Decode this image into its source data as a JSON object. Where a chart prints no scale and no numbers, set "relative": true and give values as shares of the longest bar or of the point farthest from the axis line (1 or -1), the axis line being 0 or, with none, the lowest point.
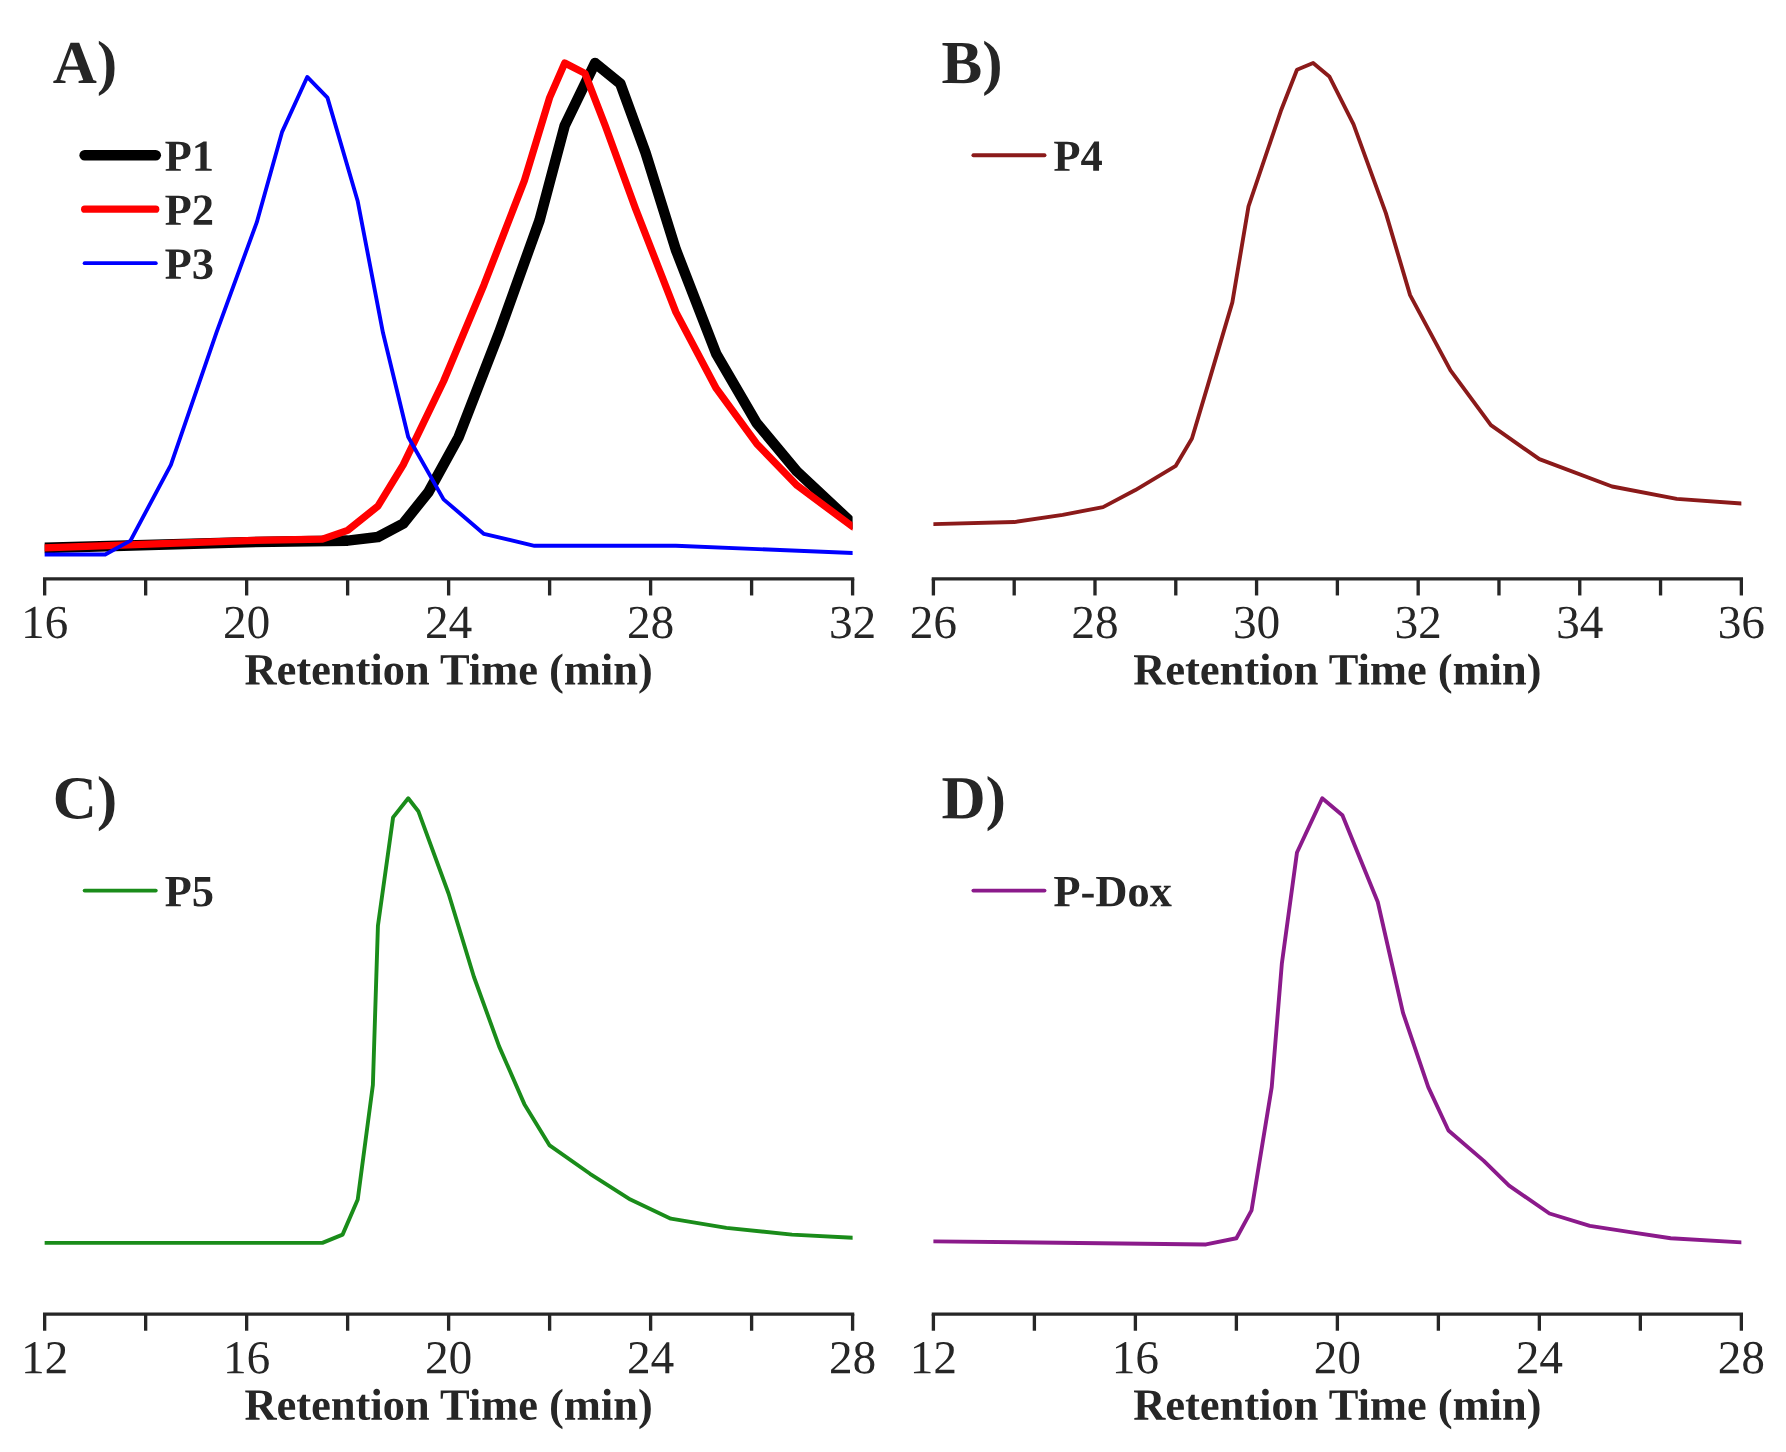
{
  "chart_data": [
    {
      "type": "line",
      "title": "A)",
      "xlabel": "Retention Time (min)",
      "relative": true,
      "legend": "top left",
      "xlim": [
        16,
        32
      ],
      "xticks": [
        16,
        {
          "value": 18,
          "label": null
        },
        20,
        {
          "value": 22,
          "label": null
        },
        24,
        {
          "value": 26,
          "label": null
        },
        28,
        {
          "value": 30,
          "label": null
        },
        32
      ],
      "tick_labels": "x",
      "grid": false,
      "series": [
        {
          "name": "P1",
          "color": "#000000",
          "x": [
            16,
            20,
            22,
            22.6,
            23.1,
            23.6,
            24.2,
            25,
            25.8,
            26.3,
            26.9,
            27.4,
            27.9,
            28.5,
            29.3,
            30.1,
            30.9,
            32
          ],
          "values": [
            0.06,
            0.071,
            0.074,
            0.081,
            0.107,
            0.168,
            0.275,
            0.477,
            0.695,
            0.879,
            1.0,
            0.96,
            0.826,
            0.638,
            0.436,
            0.302,
            0.208,
            0.107
          ]
        },
        {
          "name": "P2",
          "color": "#ff0000",
          "x": [
            16,
            20,
            21.5,
            22,
            22.6,
            23.1,
            23.9,
            24.7,
            25.5,
            26.0,
            26.3,
            26.7,
            27.1,
            27.7,
            28.5,
            29.3,
            30.1,
            30.9,
            32
          ],
          "values": [
            0.06,
            0.074,
            0.077,
            0.094,
            0.141,
            0.221,
            0.383,
            0.57,
            0.772,
            0.933,
            1.0,
            0.98,
            0.879,
            0.718,
            0.517,
            0.369,
            0.262,
            0.181,
            0.101
          ]
        },
        {
          "name": "P3",
          "color": "#0000ff",
          "x": [
            16,
            17.2,
            17.7,
            18.5,
            19.4,
            20.2,
            20.7,
            21.2,
            21.6,
            22.2,
            22.7,
            23.2,
            23.9,
            24.7,
            25.7,
            28.5,
            32
          ],
          "values": [
            0.047,
            0.047,
            0.074,
            0.221,
            0.477,
            0.691,
            0.866,
            0.973,
            0.933,
            0.732,
            0.477,
            0.275,
            0.154,
            0.087,
            0.064,
            0.064,
            0.05
          ]
        }
      ]
    },
    {
      "type": "line",
      "title": "B)",
      "xlabel": "Retention Time (min)",
      "relative": true,
      "legend": "top left",
      "xlim": [
        26,
        36
      ],
      "xticks": [
        26,
        {
          "value": 27,
          "label": null
        },
        28,
        {
          "value": 29,
          "label": null
        },
        30,
        {
          "value": 31,
          "label": null
        },
        32,
        {
          "value": 33,
          "label": null
        },
        34,
        {
          "value": 35,
          "label": null
        },
        36
      ],
      "tick_labels": "x",
      "grid": false,
      "series": [
        {
          "name": "P4",
          "color": "#8b1a1a",
          "x": [
            26,
            27,
            27.6,
            28.1,
            28.5,
            29,
            29.2,
            29.4,
            29.7,
            29.9,
            30.3,
            30.5,
            30.7,
            30.9,
            31.2,
            31.6,
            31.9,
            32.4,
            32.9,
            33.5,
            34.4,
            35.2,
            36
          ],
          "values": [
            0.106,
            0.11,
            0.124,
            0.139,
            0.172,
            0.219,
            0.272,
            0.377,
            0.536,
            0.722,
            0.907,
            0.987,
            1.0,
            0.974,
            0.881,
            0.709,
            0.55,
            0.404,
            0.298,
            0.232,
            0.179,
            0.155,
            0.146
          ]
        }
      ]
    },
    {
      "type": "line",
      "title": "C)",
      "xlabel": "Retention Time (min)",
      "relative": true,
      "legend": "top left",
      "xlim": [
        12,
        28
      ],
      "xticks": [
        12,
        {
          "value": 14,
          "label": null
        },
        16,
        {
          "value": 18,
          "label": null
        },
        20,
        {
          "value": 22,
          "label": null
        },
        24,
        {
          "value": 26,
          "label": null
        },
        28
      ],
      "tick_labels": "x",
      "grid": false,
      "series": [
        {
          "name": "P5",
          "color": "#1a8c1a",
          "x": [
            12,
            17.5,
            17.9,
            18.2,
            18.5,
            18.6,
            18.9,
            19.2,
            19.4,
            20,
            20.5,
            21,
            21.5,
            22,
            22.8,
            23.6,
            24.4,
            25.5,
            26.8,
            28
          ],
          "values": [
            0.138,
            0.138,
            0.154,
            0.222,
            0.444,
            0.753,
            0.963,
            1.0,
            0.975,
            0.815,
            0.654,
            0.519,
            0.407,
            0.327,
            0.272,
            0.222,
            0.185,
            0.167,
            0.154,
            0.148
          ]
        }
      ]
    },
    {
      "type": "line",
      "title": "D)",
      "xlabel": "Retention Time (min)",
      "relative": true,
      "legend": "top left",
      "xlim": [
        12,
        28
      ],
      "xticks": [
        12,
        {
          "value": 14,
          "label": null
        },
        16,
        {
          "value": 18,
          "label": null
        },
        20,
        {
          "value": 22,
          "label": null
        },
        24,
        {
          "value": 26,
          "label": null
        },
        28
      ],
      "tick_labels": "x",
      "grid": false,
      "series": [
        {
          "name": "P-Dox",
          "color": "#8b1a8b",
          "x": [
            12,
            17.4,
            18,
            18.3,
            18.7,
            18.9,
            19.2,
            19.7,
            20.1,
            20.8,
            21.3,
            21.8,
            22.2,
            22.9,
            23.4,
            24.2,
            25,
            25.8,
            26.6,
            28
          ],
          "values": [
            0.141,
            0.135,
            0.147,
            0.201,
            0.44,
            0.679,
            0.895,
            1.0,
            0.967,
            0.799,
            0.584,
            0.44,
            0.356,
            0.297,
            0.249,
            0.195,
            0.171,
            0.159,
            0.147,
            0.139
          ]
        }
      ]
    }
  ]
}
